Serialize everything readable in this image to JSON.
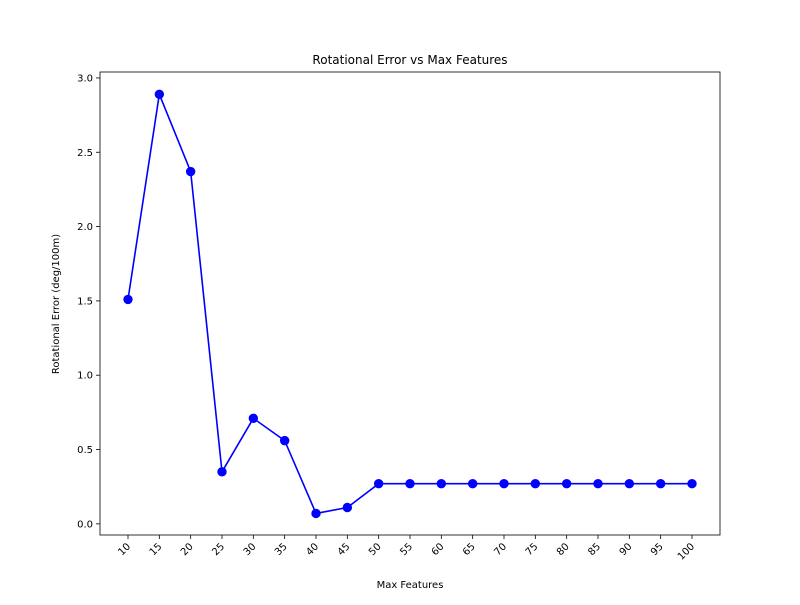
{
  "chart_data": {
    "type": "line",
    "title": "Rotational Error vs Max Features",
    "xlabel": "Max Features",
    "ylabel": "Rotational Error (deg/100m)",
    "categories": [
      "10",
      "15",
      "20",
      "25",
      "30",
      "35",
      "40",
      "45",
      "50",
      "55",
      "60",
      "65",
      "70",
      "75",
      "80",
      "85",
      "90",
      "95",
      "100"
    ],
    "series": [
      {
        "values": [
          1.51,
          2.89,
          2.37,
          0.35,
          0.71,
          0.56,
          0.07,
          0.11,
          0.27,
          0.27,
          0.27,
          0.27,
          0.27,
          0.27,
          0.27,
          0.27,
          0.27,
          0.27,
          0.27
        ],
        "color": "#0000ff",
        "marker": "circle"
      }
    ],
    "yticks": [
      "0.0",
      "0.5",
      "1.0",
      "1.5",
      "2.0",
      "2.5",
      "3.0"
    ],
    "ylim": [
      -0.075,
      3.04
    ],
    "x_tick_rotation": "45deg",
    "grid": false,
    "legend": "none"
  }
}
